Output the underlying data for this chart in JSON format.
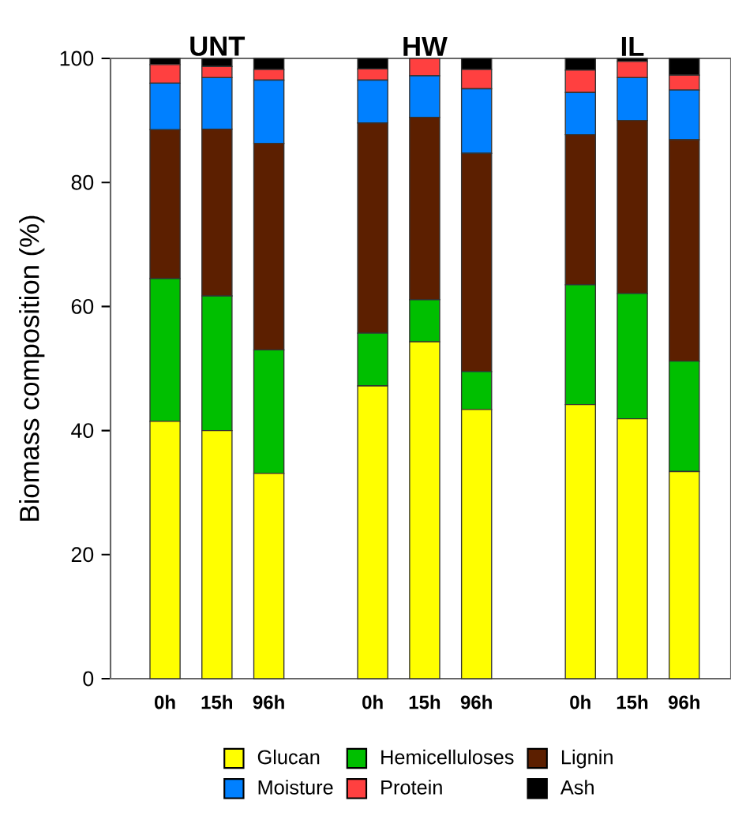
{
  "chart_data": {
    "type": "bar",
    "stacked": true,
    "ylabel": "Biomass composition (%)",
    "annotations": [
      "UNT",
      "HW",
      "IL"
    ],
    "categories": [
      "0h",
      "15h",
      "96h",
      null,
      "0h",
      "15h",
      "96h",
      null,
      "0h",
      "15h",
      "96h"
    ],
    "series": [
      {
        "name": "Glucan",
        "color": "#ffff00",
        "values": [
          41.5,
          40.0,
          33.1,
          null,
          47.2,
          54.3,
          43.4,
          null,
          44.2,
          41.9,
          33.4
        ]
      },
      {
        "name": "Hemicelluloses",
        "color": "#00bf00",
        "values": [
          23.0,
          21.7,
          19.9,
          null,
          8.5,
          6.8,
          6.1,
          null,
          19.3,
          20.2,
          17.8
        ]
      },
      {
        "name": "Lignin",
        "color": "#5c1f00",
        "values": [
          24.0,
          26.9,
          33.3,
          null,
          33.9,
          29.4,
          35.2,
          null,
          24.2,
          27.9,
          35.7
        ]
      },
      {
        "name": "Moisture",
        "color": "#0080ff",
        "values": [
          7.5,
          8.3,
          10.2,
          null,
          6.9,
          6.7,
          10.4,
          null,
          6.8,
          6.9,
          8.0
        ]
      },
      {
        "name": "Protein",
        "color": "#ff4040",
        "values": [
          3.0,
          1.8,
          1.7,
          null,
          1.8,
          2.8,
          3.1,
          null,
          3.6,
          2.6,
          2.4
        ]
      },
      {
        "name": "Ash",
        "color": "#000000",
        "values": [
          1.0,
          1.3,
          1.8,
          null,
          1.7,
          0,
          1.8,
          null,
          1.9,
          0.5,
          2.7
        ]
      }
    ],
    "ylim": [
      0,
      100
    ],
    "yticks": [
      0,
      20,
      40,
      60,
      80,
      100
    ],
    "legend": "bottom"
  }
}
